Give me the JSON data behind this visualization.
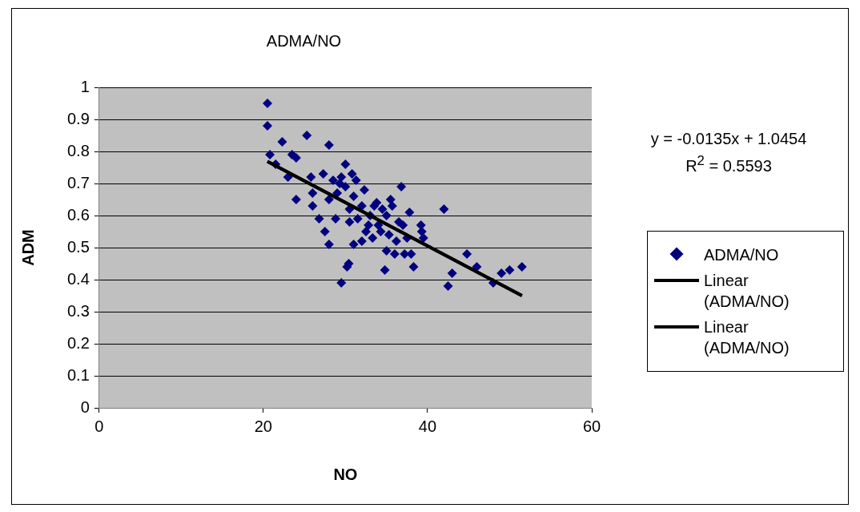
{
  "chart_data": {
    "type": "scatter",
    "title": "ADMA/NO",
    "xlabel": "NO",
    "ylabel": "ADM",
    "marker": "diamond",
    "grid": "y",
    "legend": "right",
    "xlim": [
      0,
      60
    ],
    "xticks": [
      0,
      20,
      40,
      60
    ],
    "ylim": [
      0,
      1
    ],
    "yticks": [
      0,
      0.1,
      0.2,
      0.3,
      0.4,
      0.5,
      0.6,
      0.7,
      0.8,
      0.9,
      1
    ],
    "annotations": [
      "y = -0.0135x + 1.0454",
      "R$^{2}$ = 0.5593"
    ],
    "series": [
      {
        "name": "ADMA/NO",
        "color": "#000080",
        "x": [
          20.5,
          20.5,
          20.8,
          21.5,
          22.3,
          23,
          23.5,
          24,
          24,
          25.3,
          25.8,
          26,
          26,
          26.8,
          27.3,
          27.5,
          28,
          28,
          28,
          28.5,
          28.8,
          29,
          29.3,
          29.5,
          29.5,
          30,
          30,
          30.2,
          30.4,
          30.5,
          30.5,
          30.8,
          31,
          31,
          31.3,
          31.5,
          32,
          32,
          32.3,
          32.5,
          32.8,
          33,
          33.3,
          33.5,
          33.8,
          34,
          34.3,
          34.5,
          34.8,
          35,
          35,
          35.3,
          35.5,
          35.7,
          36,
          36.2,
          36.5,
          36.8,
          37,
          37.2,
          37.5,
          37.8,
          38,
          38.3,
          39.2,
          39.3,
          39.5,
          42,
          42.5,
          43,
          44.8,
          46,
          48,
          49,
          50,
          51.5
        ],
        "values": [
          0.95,
          0.88,
          0.79,
          0.76,
          0.83,
          0.72,
          0.79,
          0.78,
          0.65,
          0.85,
          0.72,
          0.67,
          0.63,
          0.59,
          0.73,
          0.55,
          0.82,
          0.51,
          0.65,
          0.71,
          0.59,
          0.67,
          0.7,
          0.39,
          0.72,
          0.76,
          0.69,
          0.44,
          0.45,
          0.62,
          0.58,
          0.73,
          0.66,
          0.51,
          0.71,
          0.59,
          0.63,
          0.52,
          0.68,
          0.55,
          0.57,
          0.6,
          0.53,
          0.63,
          0.64,
          0.57,
          0.55,
          0.62,
          0.43,
          0.6,
          0.49,
          0.54,
          0.65,
          0.63,
          0.48,
          0.52,
          0.58,
          0.69,
          0.57,
          0.48,
          0.53,
          0.61,
          0.48,
          0.44,
          0.57,
          0.55,
          0.53,
          0.62,
          0.38,
          0.42,
          0.48,
          0.44,
          0.39,
          0.42,
          0.43,
          0.44
        ]
      },
      {
        "name": "Linear (ADMA/NO)",
        "type": "line",
        "color": "#000000",
        "marker": "none",
        "x": [
          20.5,
          51.5
        ],
        "values": [
          0.769,
          0.35
        ]
      },
      {
        "name": "Linear (ADMA/NO)",
        "type": "line",
        "color": "#000000",
        "marker": "none",
        "x": [
          20.5,
          51.5
        ],
        "values": [
          0.769,
          0.35
        ]
      }
    ]
  }
}
